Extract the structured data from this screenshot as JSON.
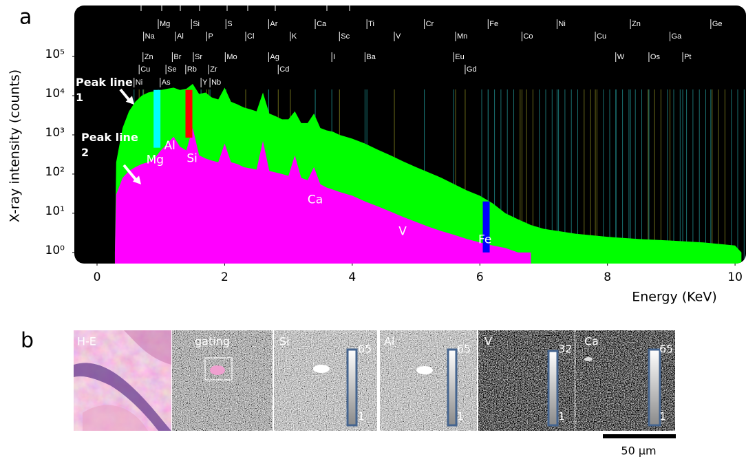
{
  "panel_labels": [
    "a",
    "b"
  ],
  "chart_data": {
    "type": "area",
    "xlabel": "Energy (KeV)",
    "ylabel": "X-ray intensity (counts)",
    "xlim": [
      -0.356,
      10.15
    ],
    "xticks": [
      0,
      2,
      4,
      6,
      8,
      10
    ],
    "ylim": [
      0.52,
      2000000
    ],
    "yticks": [
      {
        "value": 1,
        "label": "10⁰"
      },
      {
        "value": 10,
        "label": "10¹"
      },
      {
        "value": 100,
        "label": "10²"
      },
      {
        "value": 1000,
        "label": "10³"
      },
      {
        "value": 10000,
        "label": "10⁴"
      },
      {
        "value": 100000,
        "label": "10⁵"
      }
    ],
    "log_y": true,
    "background": "#000000",
    "x": [
      0.28,
      0.3,
      0.4,
      0.5,
      0.6,
      0.7,
      0.8,
      0.9,
      1.0,
      1.1,
      1.2,
      1.3,
      1.4,
      1.5,
      1.6,
      1.7,
      1.8,
      1.9,
      2.0,
      2.1,
      2.2,
      2.3,
      2.4,
      2.5,
      2.6,
      2.7,
      2.8,
      2.9,
      3.0,
      3.1,
      3.2,
      3.3,
      3.4,
      3.5,
      3.6,
      3.7,
      3.8,
      4.0,
      4.2,
      4.4,
      4.6,
      4.8,
      5.0,
      5.2,
      5.4,
      5.6,
      5.8,
      6.0,
      6.2,
      6.4,
      6.6,
      6.8,
      7.0,
      7.5,
      8.0,
      8.5,
      9.0,
      9.5,
      10.0,
      10.1
    ],
    "series": [
      {
        "color": "#00ff00",
        "values": [
          1,
          200,
          1500,
          4000,
          7000,
          10000,
          12000,
          13000,
          14000,
          15000,
          16000,
          14000,
          15000,
          20000,
          11000,
          12000,
          9000,
          8000,
          16000,
          7000,
          6000,
          5000,
          4500,
          4000,
          12000,
          3500,
          3000,
          2500,
          2500,
          4000,
          2000,
          2000,
          3500,
          1500,
          1300,
          1200,
          1000,
          800,
          600,
          420,
          300,
          210,
          150,
          110,
          80,
          55,
          38,
          28,
          18,
          10,
          7,
          5,
          4,
          3,
          2.5,
          2.2,
          2,
          1.8,
          1.5,
          1
        ]
      },
      {
        "color": "#ff00ff",
        "values": [
          1,
          30,
          80,
          120,
          150,
          180,
          200,
          250,
          400,
          600,
          900,
          500,
          400,
          1500,
          300,
          250,
          220,
          200,
          600,
          200,
          180,
          150,
          140,
          130,
          700,
          120,
          110,
          100,
          90,
          300,
          80,
          70,
          150,
          55,
          45,
          40,
          35,
          28,
          20,
          15,
          11,
          8,
          6,
          4.5,
          3.5,
          2.8,
          2.2,
          1.8,
          1.5,
          1.3,
          1,
          1,
          null,
          null,
          null,
          null,
          null,
          null,
          null,
          null
        ]
      }
    ],
    "highlights": [
      {
        "color": "#00ffff",
        "x": 0.94,
        "from": 470,
        "to": 14000
      },
      {
        "color": "#ff0000",
        "x": 1.44,
        "from": 850,
        "to": 14000
      },
      {
        "color": "#0000ff",
        "x": 6.1,
        "from": 1,
        "to": 20
      }
    ],
    "peak_labels": [
      {
        "label": "Mg",
        "x": 0.91,
        "y": 230
      },
      {
        "label": "Al",
        "x": 1.14,
        "y": 520
      },
      {
        "label": "Si",
        "x": 1.49,
        "y": 250
      },
      {
        "label": "Ca",
        "x": 3.42,
        "y": 22
      },
      {
        "label": "V",
        "x": 4.79,
        "y": 3.4
      },
      {
        "label": "Fe",
        "x": 6.08,
        "y": 2.1
      }
    ],
    "annotations": [
      "Peak line 1",
      "Peak line 2"
    ],
    "element_rows": [
      [
        {
          "label": "Mg",
          "x": 0.96
        },
        {
          "label": "Si",
          "x": 1.48
        },
        {
          "label": "S",
          "x": 2.02
        },
        {
          "label": "Ar",
          "x": 2.69
        },
        {
          "label": "Ca",
          "x": 3.42
        },
        {
          "label": "Ti",
          "x": 4.23
        },
        {
          "label": "Cr",
          "x": 5.13
        },
        {
          "label": "Fe",
          "x": 6.13
        },
        {
          "label": "Ni",
          "x": 7.21
        },
        {
          "label": "Zn",
          "x": 8.36
        },
        {
          "label": "Ge",
          "x": 9.62
        }
      ],
      [
        {
          "label": "Na",
          "x": 0.73
        },
        {
          "label": "Al",
          "x": 1.23
        },
        {
          "label": "P",
          "x": 1.72
        },
        {
          "label": "Cl",
          "x": 2.33
        },
        {
          "label": "K",
          "x": 3.03
        },
        {
          "label": "Sc",
          "x": 3.8
        },
        {
          "label": "V",
          "x": 4.66
        },
        {
          "label": "Mn",
          "x": 5.62
        },
        {
          "label": "Co",
          "x": 6.66
        },
        {
          "label": "Cu",
          "x": 7.81
        },
        {
          "label": "Ga",
          "x": 8.98
        }
      ],
      [
        {
          "label": "Zn",
          "x": 0.72
        },
        {
          "label": "Br",
          "x": 1.18
        },
        {
          "label": "Sr",
          "x": 1.51
        },
        {
          "label": "Mo",
          "x": 2.01
        },
        {
          "label": "Ag",
          "x": 2.69
        },
        {
          "label": "I",
          "x": 3.68
        },
        {
          "label": "Ba",
          "x": 4.2
        },
        {
          "label": "Eu",
          "x": 5.59
        },
        {
          "label": "W",
          "x": 8.13
        },
        {
          "label": "Os",
          "x": 8.65
        },
        {
          "label": "Pt",
          "x": 9.18
        }
      ],
      [
        {
          "label": "Cu",
          "x": 0.66
        },
        {
          "label": "Se",
          "x": 1.08
        },
        {
          "label": "Rb",
          "x": 1.39
        },
        {
          "label": "Zr",
          "x": 1.75
        },
        {
          "label": "Cd",
          "x": 2.84
        },
        {
          "label": "Gd",
          "x": 5.77
        }
      ],
      [
        {
          "label": "Ni",
          "x": 0.58
        },
        {
          "label": "As",
          "x": 0.99
        },
        {
          "label": "Y",
          "x": 1.63
        },
        {
          "label": "Nb",
          "x": 1.77
        }
      ]
    ]
  },
  "panel_b": {
    "images": [
      {
        "label": "H-E"
      },
      {
        "label": "gating"
      },
      {
        "label": "Si",
        "scale_max": 65,
        "scale_min": 1
      },
      {
        "label": "Al",
        "scale_max": 65,
        "scale_min": 1
      },
      {
        "label": "V",
        "scale_max": 32,
        "scale_min": 1
      },
      {
        "label": "Ca",
        "scale_max": 65,
        "scale_min": 1
      }
    ],
    "scale_bar": "50 μm"
  }
}
